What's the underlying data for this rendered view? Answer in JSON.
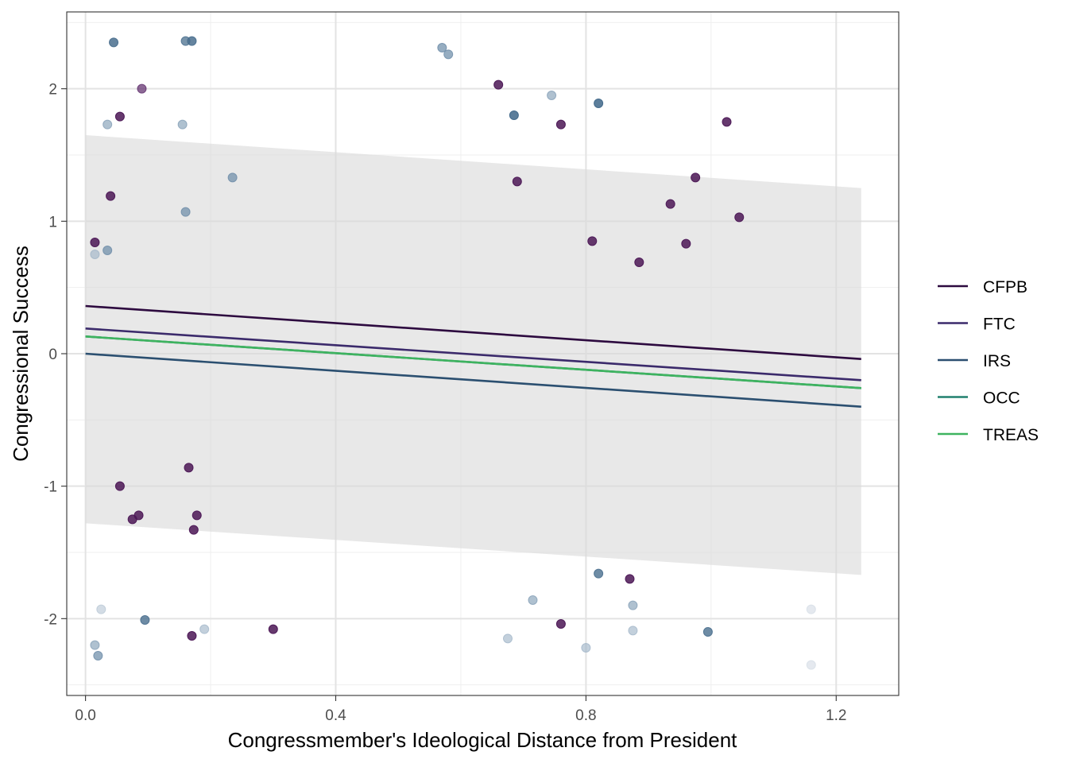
{
  "chart_data": {
    "type": "scatter",
    "title": "",
    "xlabel": "Congressmember's Ideological Distance from President",
    "ylabel": "Congressional Success",
    "xlim": [
      -0.03,
      1.3
    ],
    "ylim": [
      -2.58,
      2.58
    ],
    "x_ticks": [
      0.0,
      0.4,
      0.8,
      1.2
    ],
    "x_tick_labels": [
      "0.0",
      "0.4",
      "0.8",
      "1.2"
    ],
    "y_ticks": [
      -2,
      -1,
      0,
      1,
      2
    ],
    "y_tick_labels": [
      "-2",
      "-1",
      "0",
      "1",
      "2"
    ],
    "grid": true,
    "legend_position": "right",
    "confidence_band": {
      "x": [
        0.0,
        1.24
      ],
      "lower": [
        -1.28,
        -1.67
      ],
      "upper": [
        1.65,
        1.25
      ],
      "color": "#d9d9d9"
    },
    "series": [
      {
        "name": "CFPB",
        "color": "#2d0a3f",
        "line": {
          "x": [
            0.0,
            1.24
          ],
          "y": [
            0.36,
            -0.04
          ]
        }
      },
      {
        "name": "FTC",
        "color": "#3b2a6b",
        "line": {
          "x": [
            0.0,
            1.24
          ],
          "y": [
            0.19,
            -0.2
          ]
        }
      },
      {
        "name": "IRS",
        "color": "#2b4f70",
        "line": {
          "x": [
            0.0,
            1.24
          ],
          "y": [
            0.0,
            -0.4
          ]
        }
      },
      {
        "name": "OCC",
        "color": "#21806f",
        "line": {
          "x": [
            0.0,
            1.24
          ],
          "y": [
            0.13,
            -0.26
          ]
        }
      },
      {
        "name": "TREAS",
        "color": "#3eb35f",
        "line": {
          "x": [
            0.0,
            1.24
          ],
          "y": [
            0.13,
            -0.26
          ]
        }
      }
    ],
    "points": [
      {
        "x": 0.045,
        "y": 2.35,
        "color": "#4a6f8e",
        "opacity": 0.85
      },
      {
        "x": 0.16,
        "y": 2.36,
        "color": "#4a6f8e",
        "opacity": 0.75
      },
      {
        "x": 0.17,
        "y": 2.36,
        "color": "#4a6f8e",
        "opacity": 0.85
      },
      {
        "x": 0.09,
        "y": 2.0,
        "color": "#5c2a6a",
        "opacity": 0.7
      },
      {
        "x": 0.055,
        "y": 1.79,
        "color": "#4b1655",
        "opacity": 0.85
      },
      {
        "x": 0.035,
        "y": 1.73,
        "color": "#7a97b0",
        "opacity": 0.6
      },
      {
        "x": 0.155,
        "y": 1.73,
        "color": "#7a97b0",
        "opacity": 0.6
      },
      {
        "x": 0.235,
        "y": 1.33,
        "color": "#6a8aa6",
        "opacity": 0.7
      },
      {
        "x": 0.04,
        "y": 1.19,
        "color": "#4b1655",
        "opacity": 0.85
      },
      {
        "x": 0.16,
        "y": 1.07,
        "color": "#6a8aa6",
        "opacity": 0.7
      },
      {
        "x": 0.015,
        "y": 0.84,
        "color": "#4b1655",
        "opacity": 0.85
      },
      {
        "x": 0.035,
        "y": 0.78,
        "color": "#6a8aa6",
        "opacity": 0.7
      },
      {
        "x": 0.015,
        "y": 0.75,
        "color": "#9bb0c4",
        "opacity": 0.6
      },
      {
        "x": 0.57,
        "y": 2.31,
        "color": "#6a8aa6",
        "opacity": 0.7
      },
      {
        "x": 0.58,
        "y": 2.26,
        "color": "#6a8aa6",
        "opacity": 0.7
      },
      {
        "x": 0.66,
        "y": 2.03,
        "color": "#4b1655",
        "opacity": 0.85
      },
      {
        "x": 0.745,
        "y": 1.95,
        "color": "#7a97b0",
        "opacity": 0.6
      },
      {
        "x": 0.82,
        "y": 1.89,
        "color": "#3f6789",
        "opacity": 0.85
      },
      {
        "x": 0.685,
        "y": 1.8,
        "color": "#3f6789",
        "opacity": 0.85
      },
      {
        "x": 0.76,
        "y": 1.73,
        "color": "#4b1655",
        "opacity": 0.85
      },
      {
        "x": 1.025,
        "y": 1.75,
        "color": "#4b1655",
        "opacity": 0.85
      },
      {
        "x": 0.69,
        "y": 1.3,
        "color": "#4b1655",
        "opacity": 0.85
      },
      {
        "x": 0.975,
        "y": 1.33,
        "color": "#4b1655",
        "opacity": 0.85
      },
      {
        "x": 0.935,
        "y": 1.13,
        "color": "#4b1655",
        "opacity": 0.85
      },
      {
        "x": 1.045,
        "y": 1.03,
        "color": "#4b1655",
        "opacity": 0.85
      },
      {
        "x": 0.81,
        "y": 0.85,
        "color": "#4b1655",
        "opacity": 0.85
      },
      {
        "x": 0.96,
        "y": 0.83,
        "color": "#4b1655",
        "opacity": 0.85
      },
      {
        "x": 0.885,
        "y": 0.69,
        "color": "#4b1655",
        "opacity": 0.85
      },
      {
        "x": 0.165,
        "y": -0.86,
        "color": "#4b1655",
        "opacity": 0.85
      },
      {
        "x": 0.055,
        "y": -1.0,
        "color": "#4b1655",
        "opacity": 0.85
      },
      {
        "x": 0.085,
        "y": -1.22,
        "color": "#4b1655",
        "opacity": 0.85
      },
      {
        "x": 0.075,
        "y": -1.25,
        "color": "#4b1655",
        "opacity": 0.85
      },
      {
        "x": 0.178,
        "y": -1.22,
        "color": "#4b1655",
        "opacity": 0.85
      },
      {
        "x": 0.173,
        "y": -1.33,
        "color": "#4b1655",
        "opacity": 0.85
      },
      {
        "x": 0.025,
        "y": -1.93,
        "color": "#b5c4d3",
        "opacity": 0.6
      },
      {
        "x": 0.095,
        "y": -2.01,
        "color": "#4a6f8e",
        "opacity": 0.8
      },
      {
        "x": 0.015,
        "y": -2.2,
        "color": "#7a97b0",
        "opacity": 0.6
      },
      {
        "x": 0.02,
        "y": -2.28,
        "color": "#6a8aa6",
        "opacity": 0.7
      },
      {
        "x": 0.17,
        "y": -2.13,
        "color": "#4b1655",
        "opacity": 0.85
      },
      {
        "x": 0.19,
        "y": -2.08,
        "color": "#9bb0c4",
        "opacity": 0.6
      },
      {
        "x": 0.3,
        "y": -2.08,
        "color": "#4b1655",
        "opacity": 0.85
      },
      {
        "x": 0.82,
        "y": -1.66,
        "color": "#4a6f8e",
        "opacity": 0.8
      },
      {
        "x": 0.87,
        "y": -1.7,
        "color": "#4b1655",
        "opacity": 0.85
      },
      {
        "x": 0.715,
        "y": -1.86,
        "color": "#7a97b0",
        "opacity": 0.6
      },
      {
        "x": 0.875,
        "y": -1.9,
        "color": "#7a97b0",
        "opacity": 0.6
      },
      {
        "x": 0.76,
        "y": -2.04,
        "color": "#4b1655",
        "opacity": 0.85
      },
      {
        "x": 0.675,
        "y": -2.15,
        "color": "#9bb0c4",
        "opacity": 0.6
      },
      {
        "x": 0.8,
        "y": -2.22,
        "color": "#9bb0c4",
        "opacity": 0.6
      },
      {
        "x": 0.875,
        "y": -2.09,
        "color": "#9bb0c4",
        "opacity": 0.6
      },
      {
        "x": 0.995,
        "y": -2.1,
        "color": "#4a6f8e",
        "opacity": 0.8
      },
      {
        "x": 1.16,
        "y": -1.93,
        "color": "#d3dbe4",
        "opacity": 0.6
      },
      {
        "x": 1.16,
        "y": -2.35,
        "color": "#d3dbe4",
        "opacity": 0.6
      }
    ]
  }
}
